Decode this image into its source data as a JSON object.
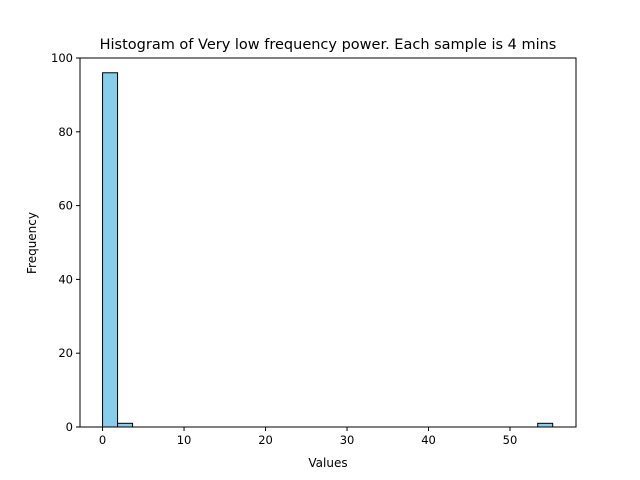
{
  "chart_data": {
    "type": "bar",
    "title": "Histogram of Very low frequency power. Each sample is 4 mins",
    "xlabel": "Values",
    "ylabel": "Frequency",
    "xlim": [
      -2.77,
      58.1
    ],
    "ylim": [
      0,
      100
    ],
    "x_ticks": [
      0,
      10,
      20,
      30,
      40,
      50
    ],
    "y_ticks": [
      0,
      20,
      40,
      60,
      80,
      100
    ],
    "bin_width": 1.84,
    "bins": [
      {
        "start": 0.0,
        "end": 1.84,
        "count": 96
      },
      {
        "start": 1.84,
        "end": 3.68,
        "count": 1
      },
      {
        "start": 53.4,
        "end": 55.24,
        "count": 1
      }
    ],
    "grid": false,
    "bar_color": "#87ceeb",
    "edge_color": "#000000"
  }
}
